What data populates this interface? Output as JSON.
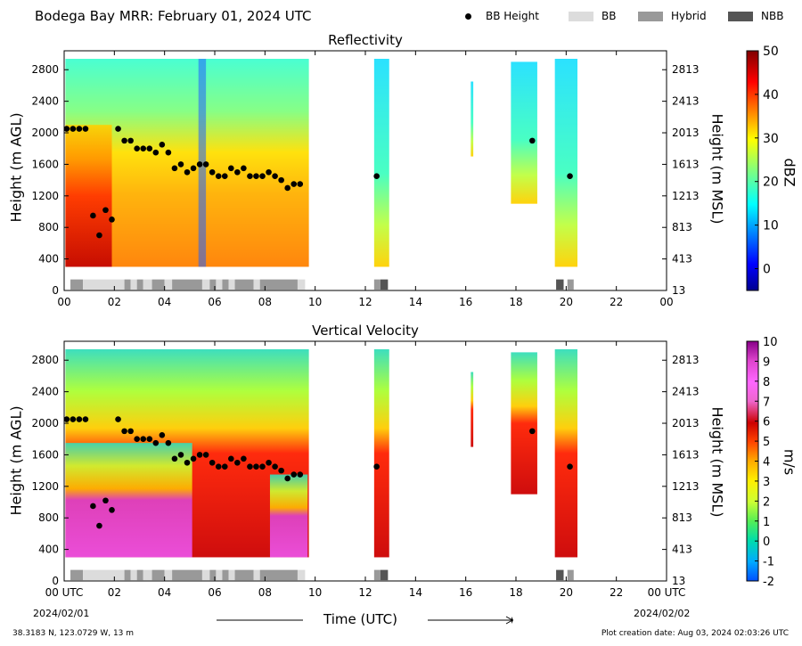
{
  "header": {
    "title": "Bodega Bay MRR:  February 01, 2024 UTC",
    "legend": [
      {
        "label": "BB Height",
        "marker": "dot",
        "color": "#000000"
      },
      {
        "label": "BB",
        "marker": "swatch",
        "color": "#dcdcdc"
      },
      {
        "label": "Hybrid",
        "marker": "swatch",
        "color": "#999999"
      },
      {
        "label": "NBB",
        "marker": "swatch",
        "color": "#555555"
      }
    ]
  },
  "chart_data": [
    {
      "type": "heatmap",
      "title": "Reflectivity",
      "ylabel": "Height (m AGL)",
      "ylabel_right": "Height (m MSL)",
      "xlim": [
        0,
        24
      ],
      "ylim": [
        0,
        3000
      ],
      "x_ticks": [
        "00",
        "02",
        "04",
        "06",
        "08",
        "10",
        "12",
        "14",
        "16",
        "18",
        "20",
        "22",
        "00"
      ],
      "y_ticks": [
        0,
        400,
        800,
        1200,
        1600,
        2000,
        2400,
        2800
      ],
      "y_ticks_right": [
        13,
        413,
        813,
        1213,
        1613,
        2013,
        2413,
        2813
      ],
      "colorbar": {
        "label": "dBZ",
        "min": -5,
        "max": 50,
        "ticks": [
          0,
          10,
          20,
          30,
          40,
          50
        ]
      },
      "bb_height_points": [
        [
          0.1,
          2050
        ],
        [
          0.35,
          2050
        ],
        [
          0.6,
          2050
        ],
        [
          0.85,
          2050
        ],
        [
          1.15,
          950
        ],
        [
          1.4,
          700
        ],
        [
          1.65,
          1020
        ],
        [
          1.9,
          900
        ],
        [
          2.15,
          2050
        ],
        [
          2.4,
          1900
        ],
        [
          2.65,
          1900
        ],
        [
          2.9,
          1800
        ],
        [
          3.15,
          1800
        ],
        [
          3.4,
          1800
        ],
        [
          3.65,
          1750
        ],
        [
          3.9,
          1850
        ],
        [
          4.15,
          1750
        ],
        [
          4.4,
          1550
        ],
        [
          4.65,
          1600
        ],
        [
          4.9,
          1500
        ],
        [
          5.15,
          1550
        ],
        [
          5.4,
          1600
        ],
        [
          5.65,
          1600
        ],
        [
          5.9,
          1500
        ],
        [
          6.15,
          1450
        ],
        [
          6.4,
          1450
        ],
        [
          6.65,
          1550
        ],
        [
          6.9,
          1500
        ],
        [
          7.15,
          1550
        ],
        [
          7.4,
          1450
        ],
        [
          7.65,
          1450
        ],
        [
          7.9,
          1450
        ],
        [
          8.15,
          1500
        ],
        [
          8.4,
          1450
        ],
        [
          8.65,
          1400
        ],
        [
          8.9,
          1300
        ],
        [
          9.15,
          1350
        ],
        [
          9.4,
          1350
        ],
        [
          12.45,
          1450
        ],
        [
          18.65,
          1900
        ],
        [
          20.15,
          1450
        ]
      ],
      "bb_type_strip": [
        {
          "start": 0.25,
          "end": 0.75,
          "type": "Hybrid"
        },
        {
          "start": 0.75,
          "end": 2.4,
          "type": "BB"
        },
        {
          "start": 2.4,
          "end": 2.65,
          "type": "Hybrid"
        },
        {
          "start": 2.65,
          "end": 2.9,
          "type": "BB"
        },
        {
          "start": 2.9,
          "end": 3.15,
          "type": "Hybrid"
        },
        {
          "start": 3.15,
          "end": 3.5,
          "type": "BB"
        },
        {
          "start": 3.5,
          "end": 4.0,
          "type": "Hybrid"
        },
        {
          "start": 4.0,
          "end": 4.3,
          "type": "BB"
        },
        {
          "start": 4.3,
          "end": 5.5,
          "type": "Hybrid"
        },
        {
          "start": 5.5,
          "end": 5.8,
          "type": "BB"
        },
        {
          "start": 5.8,
          "end": 6.05,
          "type": "Hybrid"
        },
        {
          "start": 6.05,
          "end": 6.3,
          "type": "BB"
        },
        {
          "start": 6.3,
          "end": 6.55,
          "type": "Hybrid"
        },
        {
          "start": 6.55,
          "end": 6.8,
          "type": "BB"
        },
        {
          "start": 6.8,
          "end": 7.55,
          "type": "Hybrid"
        },
        {
          "start": 7.55,
          "end": 7.8,
          "type": "BB"
        },
        {
          "start": 7.8,
          "end": 9.3,
          "type": "Hybrid"
        },
        {
          "start": 9.3,
          "end": 9.6,
          "type": "BB"
        },
        {
          "start": 12.35,
          "end": 12.6,
          "type": "Hybrid"
        },
        {
          "start": 12.6,
          "end": 12.9,
          "type": "NBB"
        },
        {
          "start": 19.6,
          "end": 19.9,
          "type": "NBB"
        },
        {
          "start": 20.05,
          "end": 20.3,
          "type": "Hybrid"
        }
      ]
    },
    {
      "type": "heatmap",
      "title": "Vertical Velocity",
      "ylabel": "Height (m AGL)",
      "ylabel_right": "Height (m MSL)",
      "xlim": [
        0,
        24
      ],
      "ylim": [
        0,
        3000
      ],
      "x_ticks": [
        "00 UTC",
        "02",
        "04",
        "06",
        "08",
        "10",
        "12",
        "14",
        "16",
        "18",
        "20",
        "22",
        "00 UTC"
      ],
      "y_ticks": [
        0,
        400,
        800,
        1200,
        1600,
        2000,
        2400,
        2800
      ],
      "y_ticks_right": [
        13,
        413,
        813,
        1213,
        1613,
        2013,
        2413,
        2813
      ],
      "colorbar": {
        "label": "m/s",
        "min": -2,
        "max": 10,
        "ticks": [
          -2,
          -1,
          0,
          1,
          2,
          3,
          4,
          5,
          6,
          7,
          8,
          9,
          10
        ]
      },
      "bb_height_points": [
        [
          0.1,
          2050
        ],
        [
          0.35,
          2050
        ],
        [
          0.6,
          2050
        ],
        [
          0.85,
          2050
        ],
        [
          1.15,
          950
        ],
        [
          1.4,
          700
        ],
        [
          1.65,
          1020
        ],
        [
          1.9,
          900
        ],
        [
          2.15,
          2050
        ],
        [
          2.4,
          1900
        ],
        [
          2.65,
          1900
        ],
        [
          2.9,
          1800
        ],
        [
          3.15,
          1800
        ],
        [
          3.4,
          1800
        ],
        [
          3.65,
          1750
        ],
        [
          3.9,
          1850
        ],
        [
          4.15,
          1750
        ],
        [
          4.4,
          1550
        ],
        [
          4.65,
          1600
        ],
        [
          4.9,
          1500
        ],
        [
          5.15,
          1550
        ],
        [
          5.4,
          1600
        ],
        [
          5.65,
          1600
        ],
        [
          5.9,
          1500
        ],
        [
          6.15,
          1450
        ],
        [
          6.4,
          1450
        ],
        [
          6.65,
          1550
        ],
        [
          6.9,
          1500
        ],
        [
          7.15,
          1550
        ],
        [
          7.4,
          1450
        ],
        [
          7.65,
          1450
        ],
        [
          7.9,
          1450
        ],
        [
          8.15,
          1500
        ],
        [
          8.4,
          1450
        ],
        [
          8.65,
          1400
        ],
        [
          8.9,
          1300
        ],
        [
          9.15,
          1350
        ],
        [
          9.4,
          1350
        ],
        [
          12.45,
          1450
        ],
        [
          18.65,
          1900
        ],
        [
          20.15,
          1450
        ]
      ],
      "bb_type_strip": [
        {
          "start": 0.25,
          "end": 0.75,
          "type": "Hybrid"
        },
        {
          "start": 0.75,
          "end": 2.4,
          "type": "BB"
        },
        {
          "start": 2.4,
          "end": 2.65,
          "type": "Hybrid"
        },
        {
          "start": 2.65,
          "end": 2.9,
          "type": "BB"
        },
        {
          "start": 2.9,
          "end": 3.15,
          "type": "Hybrid"
        },
        {
          "start": 3.15,
          "end": 3.5,
          "type": "BB"
        },
        {
          "start": 3.5,
          "end": 4.0,
          "type": "Hybrid"
        },
        {
          "start": 4.0,
          "end": 4.3,
          "type": "BB"
        },
        {
          "start": 4.3,
          "end": 5.5,
          "type": "Hybrid"
        },
        {
          "start": 5.5,
          "end": 5.8,
          "type": "BB"
        },
        {
          "start": 5.8,
          "end": 6.05,
          "type": "Hybrid"
        },
        {
          "start": 6.05,
          "end": 6.3,
          "type": "BB"
        },
        {
          "start": 6.3,
          "end": 6.55,
          "type": "Hybrid"
        },
        {
          "start": 6.55,
          "end": 6.8,
          "type": "BB"
        },
        {
          "start": 6.8,
          "end": 7.55,
          "type": "Hybrid"
        },
        {
          "start": 7.55,
          "end": 7.8,
          "type": "BB"
        },
        {
          "start": 7.8,
          "end": 9.3,
          "type": "Hybrid"
        },
        {
          "start": 9.3,
          "end": 9.6,
          "type": "BB"
        },
        {
          "start": 12.35,
          "end": 12.6,
          "type": "Hybrid"
        },
        {
          "start": 12.6,
          "end": 12.9,
          "type": "NBB"
        },
        {
          "start": 19.6,
          "end": 19.9,
          "type": "NBB"
        },
        {
          "start": 20.05,
          "end": 20.3,
          "type": "Hybrid"
        }
      ]
    }
  ],
  "xaxis": {
    "label": "Time (UTC)",
    "start_date": "2024/02/01",
    "end_date": "2024/02/02"
  },
  "footer": {
    "location": "38.3183 N, 123.0729 W, 13 m",
    "created": "Plot creation date: Aug 03, 2024 02:03:26 UTC"
  }
}
